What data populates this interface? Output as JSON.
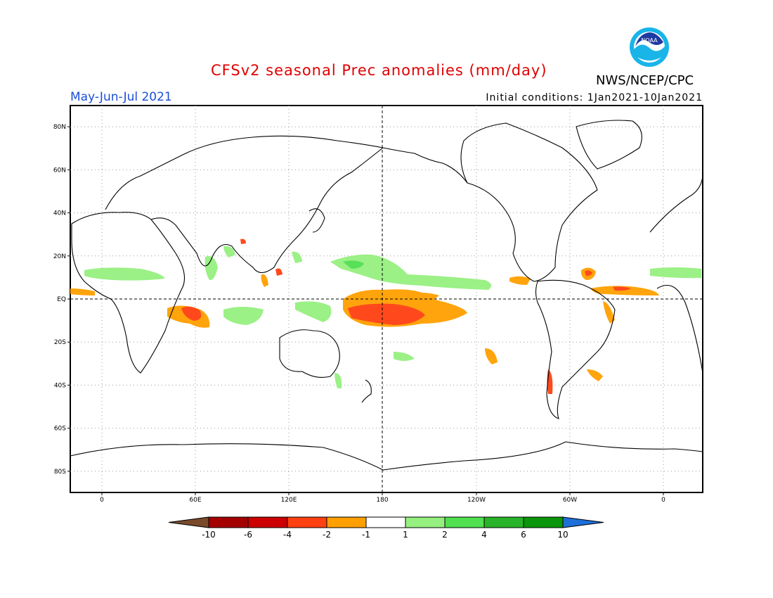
{
  "header": {
    "title": "CFSv2 seasonal Prec anomalies (mm/day)",
    "agency": "NWS/NCEP/CPC",
    "season": "May-Jun-Jul 2021",
    "initial_conditions": "Initial conditions: 1Jan2021-10Jan2021",
    "logo_text": "NOAA"
  },
  "axes": {
    "lat_labels": [
      "80N",
      "60N",
      "40N",
      "20N",
      "EQ",
      "20S",
      "40S",
      "60S",
      "80S"
    ],
    "lon_labels": [
      "0",
      "60E",
      "120E",
      "180",
      "120W",
      "60W",
      "0"
    ]
  },
  "colorbar": {
    "labels": [
      "-10",
      "-6",
      "-4",
      "-2",
      "-1",
      "1",
      "2",
      "4",
      "6",
      "10"
    ],
    "colors": [
      "#7a4a2a",
      "#a50000",
      "#cc0000",
      "#ff4010",
      "#ffa000",
      "#ffffff",
      "#96f080",
      "#50e050",
      "#28b428",
      "#0a960a",
      "#1f6fd8"
    ]
  },
  "map_data": {
    "type": "map",
    "projection": "equirectangular",
    "lon_range": [
      -20,
      385
    ],
    "lat_range": [
      -90,
      90
    ],
    "legend": "colorbar-bottom"
  }
}
